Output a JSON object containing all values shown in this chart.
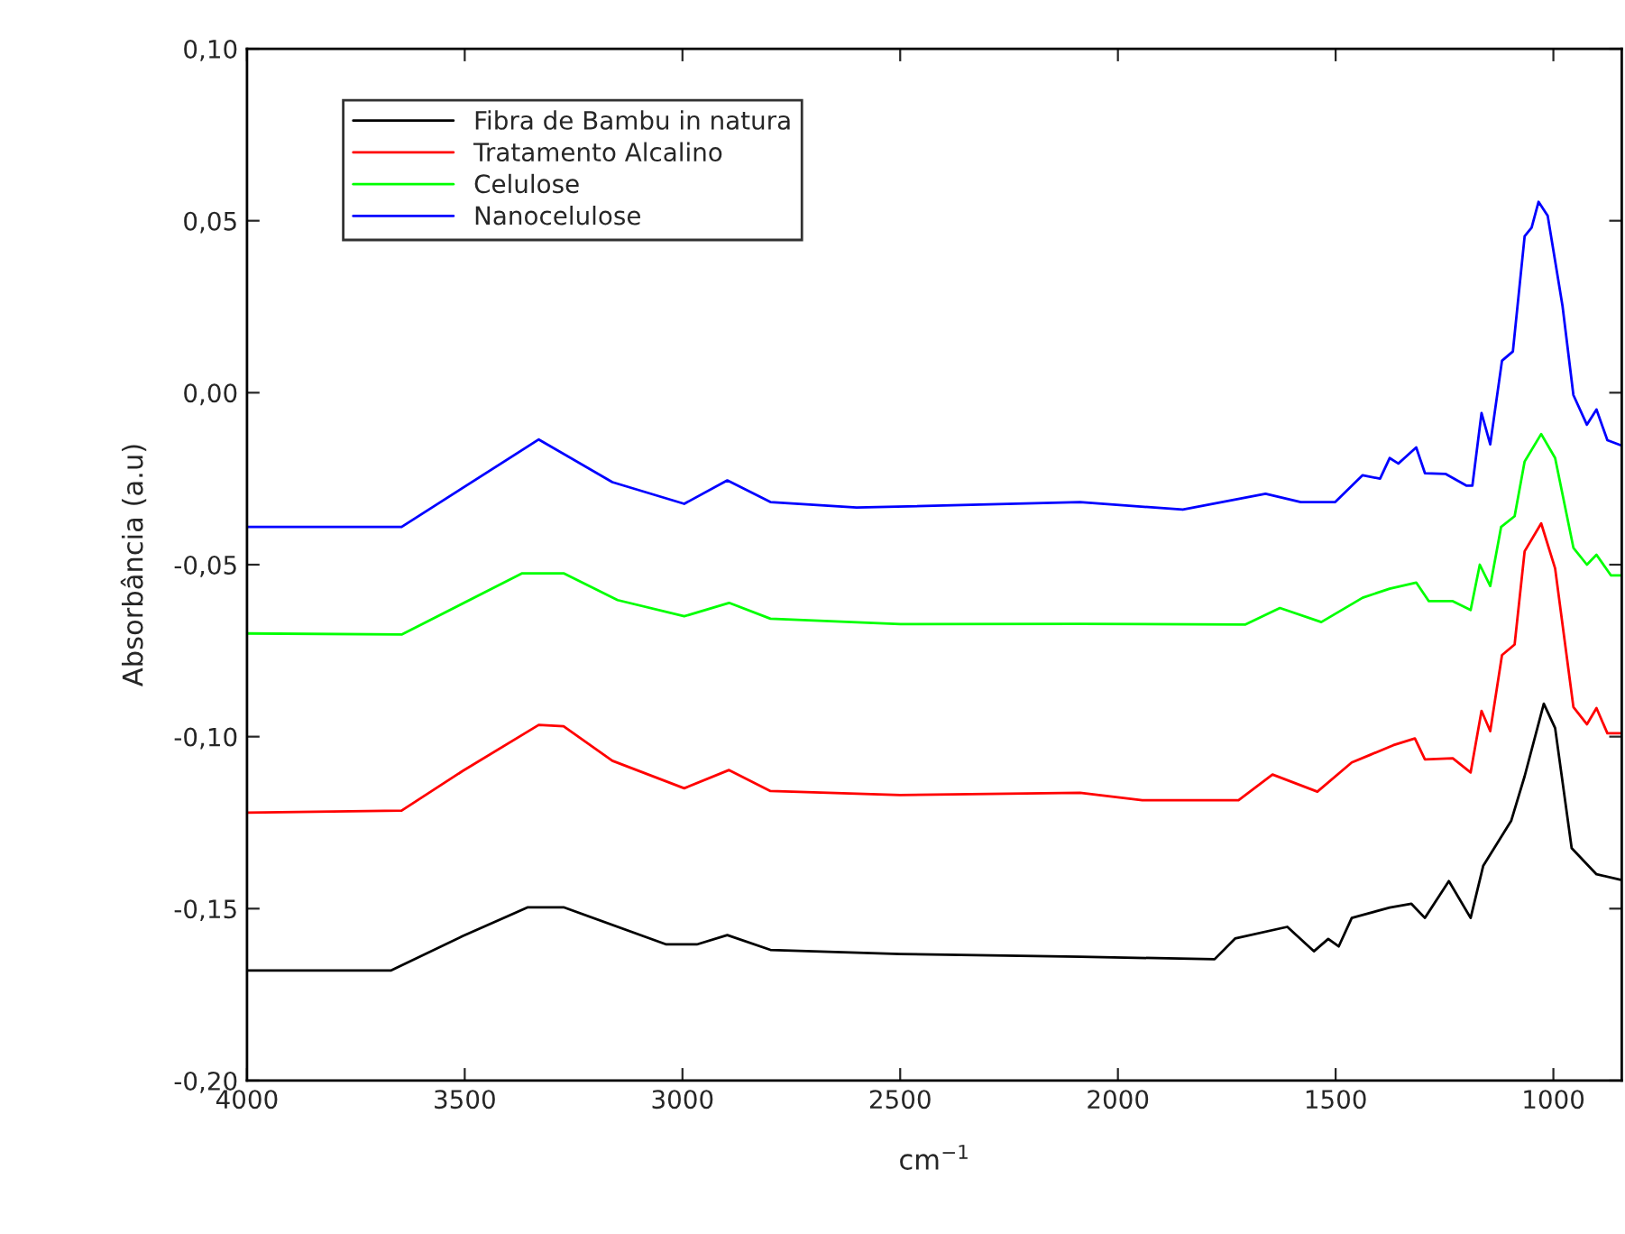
{
  "chart_data": {
    "type": "line",
    "xlabel": "cm$^{−1}$",
    "ylabel": "Absorbância (a.u)",
    "xlim": [
      4000,
      843
    ],
    "xticks": [
      4000,
      3500,
      3000,
      2500,
      2000,
      1500,
      1000
    ],
    "ylim": [
      -0.2,
      0.1
    ],
    "yticks": [
      {
        "value": -0.2,
        "label": "-0,20"
      },
      {
        "value": -0.15,
        "label": "-0,15"
      },
      {
        "value": -0.1,
        "label": "-0,10"
      },
      {
        "value": -0.05,
        "label": "-0,05"
      },
      {
        "value": 0,
        "label": "0,00"
      },
      {
        "value": 0.05,
        "label": "0,05"
      },
      {
        "value": 0.1,
        "label": "0,10"
      }
    ],
    "grid": false,
    "legend": "top left",
    "marker": "none",
    "line_style": "solid",
    "series": [
      {
        "name": "Fibra de Bambu in natura",
        "color": "#000000",
        "x": [
          4000,
          3670,
          3505,
          3355,
          3273,
          3037,
          2967,
          2897,
          2798,
          2500,
          2087,
          1778,
          1731,
          1611,
          1550,
          1517,
          1493,
          1463,
          1376,
          1326,
          1295,
          1240,
          1190,
          1161,
          1097,
          1066,
          1022,
          996,
          958,
          901,
          843
        ],
        "values": [
          -0.168,
          -0.168,
          -0.158,
          -0.1496,
          -0.1496,
          -0.1604,
          -0.1604,
          -0.1577,
          -0.162,
          -0.1632,
          -0.164,
          -0.1647,
          -0.1587,
          -0.1553,
          -0.1624,
          -0.1588,
          -0.161,
          -0.1527,
          -0.1497,
          -0.1486,
          -0.1527,
          -0.142,
          -0.1527,
          -0.1375,
          -0.1245,
          -0.1115,
          -0.0904,
          -0.0975,
          -0.1324,
          -0.14,
          -0.1417
        ]
      },
      {
        "name": "Tratamento Alcalino",
        "color": "#ff0000",
        "x": [
          4000,
          3645,
          3505,
          3330,
          3273,
          3161,
          2996,
          2893,
          2798,
          2500,
          2087,
          1944,
          1723,
          1645,
          1542,
          1463,
          1421,
          1368,
          1318,
          1295,
          1231,
          1190,
          1165,
          1145,
          1118,
          1089,
          1066,
          1028,
          996,
          954,
          923,
          901,
          876,
          843
        ],
        "values": [
          -0.1221,
          -0.1215,
          -0.11,
          -0.0966,
          -0.097,
          -0.107,
          -0.115,
          -0.1097,
          -0.1158,
          -0.117,
          -0.1163,
          -0.1185,
          -0.1185,
          -0.111,
          -0.116,
          -0.1075,
          -0.1053,
          -0.1025,
          -0.1005,
          -0.1066,
          -0.1063,
          -0.1104,
          -0.0925,
          -0.0984,
          -0.0763,
          -0.0732,
          -0.0461,
          -0.038,
          -0.0511,
          -0.0914,
          -0.0964,
          -0.0917,
          -0.099,
          -0.099
        ]
      },
      {
        "name": "Celulose",
        "color": "#00ff00",
        "x": [
          4000,
          3645,
          3368,
          3273,
          3149,
          2996,
          2893,
          2798,
          2500,
          2087,
          1707,
          1628,
          1533,
          1438,
          1376,
          1315,
          1286,
          1231,
          1190,
          1169,
          1145,
          1120,
          1089,
          1066,
          1028,
          996,
          954,
          923,
          901,
          868,
          843
        ],
        "values": [
          -0.07,
          -0.0703,
          -0.0525,
          -0.0525,
          -0.0603,
          -0.065,
          -0.0611,
          -0.0657,
          -0.0673,
          -0.0672,
          -0.0674,
          -0.0626,
          -0.0667,
          -0.0596,
          -0.057,
          -0.0552,
          -0.0606,
          -0.0606,
          -0.0632,
          -0.05,
          -0.0562,
          -0.039,
          -0.0359,
          -0.02,
          -0.012,
          -0.019,
          -0.0451,
          -0.05,
          -0.0471,
          -0.0531,
          -0.0531
        ]
      },
      {
        "name": "Nanocelulose",
        "color": "#0000ff",
        "x": [
          4000,
          3645,
          3330,
          3161,
          2996,
          2897,
          2798,
          2600,
          2087,
          1851,
          1661,
          1580,
          1501,
          1438,
          1398,
          1376,
          1356,
          1315,
          1295,
          1248,
          1200,
          1186,
          1165,
          1145,
          1118,
          1093,
          1066,
          1050,
          1034,
          1013,
          996,
          979,
          954,
          923,
          901,
          876,
          843
        ],
        "values": [
          -0.039,
          -0.039,
          -0.0136,
          -0.026,
          -0.0323,
          -0.0255,
          -0.0318,
          -0.0334,
          -0.0318,
          -0.034,
          -0.0294,
          -0.0318,
          -0.0318,
          -0.024,
          -0.025,
          -0.019,
          -0.0206,
          -0.0159,
          -0.0234,
          -0.0236,
          -0.027,
          -0.027,
          -0.0059,
          -0.015,
          0.0093,
          0.012,
          0.0455,
          0.048,
          0.0555,
          0.0514,
          0.0383,
          0.0252,
          -0.0007,
          -0.0093,
          -0.0049,
          -0.0138,
          -0.0154
        ]
      }
    ]
  }
}
